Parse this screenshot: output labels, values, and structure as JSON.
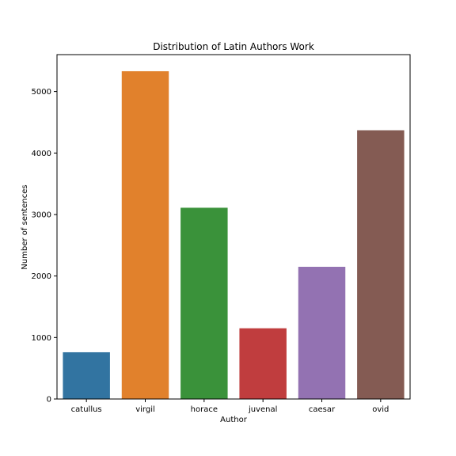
{
  "chart_data": {
    "type": "bar",
    "title": "Distribution of Latin Authors Work",
    "xlabel": "Author",
    "ylabel": "Number of sentences",
    "categories": [
      "catullus",
      "virgil",
      "horace",
      "juvenal",
      "caesar",
      "ovid"
    ],
    "values": [
      760,
      5330,
      3110,
      1150,
      2150,
      4370
    ],
    "colors": [
      "#3274a1",
      "#e1812c",
      "#3a923a",
      "#c03d3e",
      "#9372b2",
      "#845b53"
    ],
    "ylim": [
      0,
      5600
    ],
    "yticks": [
      0,
      1000,
      2000,
      3000,
      4000,
      5000
    ],
    "grid": false,
    "legend": "none"
  }
}
